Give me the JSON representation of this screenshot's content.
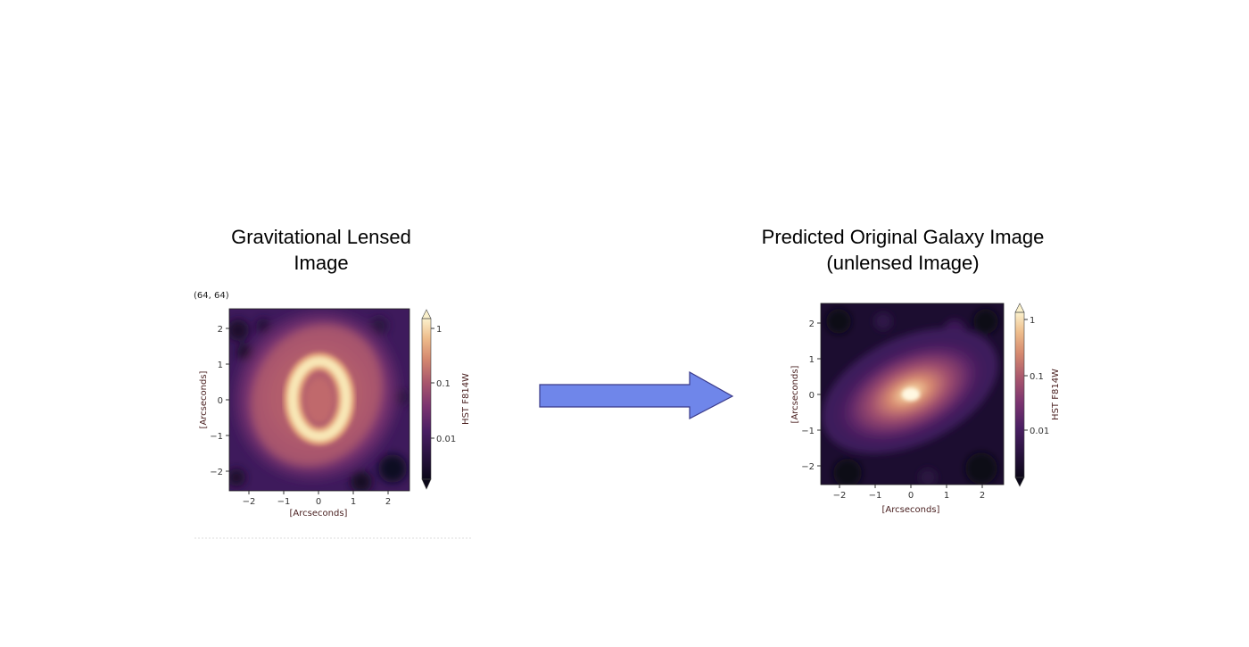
{
  "left": {
    "title_line1": "Gravitational Lensed",
    "title_line2": "Image",
    "clipped_text": "(64,  64)",
    "xlabel": "[Arcseconds]",
    "ylabel": "[Arcseconds]",
    "xticks": [
      "−2",
      "−1",
      "0",
      "1",
      "2"
    ],
    "yticks": [
      "2",
      "1",
      "0",
      "−1",
      "−2"
    ],
    "colorbar_label": "HST F814W",
    "colorbar_ticks": [
      "1",
      "0.1",
      "0.01"
    ]
  },
  "right": {
    "title_line1": "Predicted Original Galaxy Image",
    "title_line2": "(unlensed Image)",
    "xlabel": "[Arcseconds]",
    "ylabel": "[Arcseconds]",
    "xticks": [
      "−2",
      "−1",
      "0",
      "1",
      "2"
    ],
    "yticks": [
      "2",
      "1",
      "0",
      "−1",
      "−2"
    ],
    "colorbar_label": "HST F814W",
    "colorbar_ticks": [
      "1",
      "0.1",
      "0.01"
    ]
  },
  "arrow": {
    "fill": "#6f86ea",
    "stroke": "#3a3a8a"
  },
  "colormap": [
    "#0b0718",
    "#2a1340",
    "#4a1f63",
    "#6e2f70",
    "#94446f",
    "#b8646c",
    "#d5896f",
    "#e9b386",
    "#f4d9a6",
    "#fbf1cc"
  ]
}
